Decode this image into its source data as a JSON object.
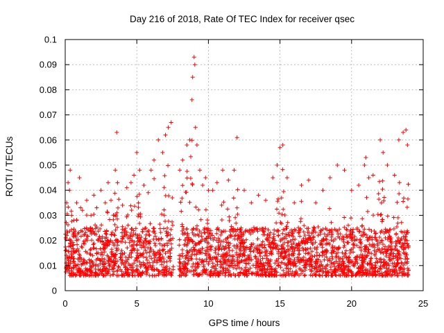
{
  "chart_data": {
    "type": "scatter",
    "title": "Day 216 of 2018, Rate Of TEC Index for receiver qsec",
    "xlabel": "GPS time / hours",
    "ylabel": "ROTI / TECUs",
    "xlim": [
      0,
      25
    ],
    "ylim": [
      0,
      0.1
    ],
    "xticks": [
      0,
      5,
      10,
      15,
      20,
      25
    ],
    "yticks": [
      0,
      0.01,
      0.02,
      0.03,
      0.04,
      0.05,
      0.06,
      0.07,
      0.08,
      0.09,
      0.1
    ],
    "xtick_labels": [
      "0",
      "5",
      "10",
      "15",
      "20",
      "25"
    ],
    "ytick_labels": [
      "0",
      "0.01",
      "0.02",
      "0.03",
      "0.04",
      "0.05",
      "0.06",
      "0.07",
      "0.08",
      "0.09",
      "0.1"
    ],
    "grid": true,
    "marker": "plus",
    "color": "#ff0000",
    "data_gaps_hours": [
      [
        3.75,
        3.85
      ],
      [
        7.55,
        7.95
      ]
    ],
    "series": [
      {
        "values_note": "dense cloud of ROTI samples",
        "x": [
          0.1,
          0.2,
          0.3,
          0.35,
          0.45,
          0.6,
          0.8,
          1.0,
          1.2,
          1.5,
          1.8,
          2.0,
          2.2,
          2.5,
          2.8,
          3.0,
          3.2,
          3.4,
          3.5,
          3.6,
          4.0,
          4.3,
          4.6,
          4.8,
          5.0,
          5.2,
          5.5,
          5.8,
          6.0,
          6.2,
          6.5,
          6.8,
          7.0,
          7.2,
          7.4,
          8.0,
          8.2,
          8.5,
          8.7,
          8.85,
          8.9,
          9.0,
          9.05,
          9.1,
          9.2,
          9.4,
          9.6,
          9.8,
          10.0,
          10.3,
          10.6,
          11.0,
          11.4,
          11.8,
          12.0,
          12.5,
          13.0,
          13.5,
          14.0,
          14.5,
          14.8,
          15.0,
          15.2,
          15.5,
          16.0,
          16.5,
          17.0,
          17.5,
          18.0,
          18.5,
          19.0,
          19.5,
          20.0,
          20.5,
          20.9,
          21.0,
          21.2,
          21.5,
          22.0,
          22.2,
          22.5,
          23.0,
          23.3,
          23.6,
          23.8,
          23.9
        ],
        "y": [
          0.035,
          0.043,
          0.04,
          0.048,
          0.03,
          0.028,
          0.035,
          0.045,
          0.032,
          0.036,
          0.03,
          0.038,
          0.033,
          0.04,
          0.035,
          0.043,
          0.036,
          0.03,
          0.048,
          0.063,
          0.034,
          0.041,
          0.043,
          0.046,
          0.055,
          0.048,
          0.042,
          0.039,
          0.048,
          0.052,
          0.06,
          0.055,
          0.062,
          0.065,
          0.067,
          0.048,
          0.052,
          0.058,
          0.06,
          0.076,
          0.085,
          0.093,
          0.09,
          0.065,
          0.058,
          0.048,
          0.042,
          0.045,
          0.04,
          0.04,
          0.043,
          0.048,
          0.044,
          0.048,
          0.061,
          0.04,
          0.035,
          0.038,
          0.036,
          0.045,
          0.05,
          0.057,
          0.058,
          0.045,
          0.035,
          0.042,
          0.044,
          0.035,
          0.04,
          0.045,
          0.05,
          0.048,
          0.04,
          0.042,
          0.05,
          0.053,
          0.045,
          0.046,
          0.06,
          0.055,
          0.05,
          0.046,
          0.06,
          0.063,
          0.064,
          0.058
        ]
      }
    ]
  }
}
